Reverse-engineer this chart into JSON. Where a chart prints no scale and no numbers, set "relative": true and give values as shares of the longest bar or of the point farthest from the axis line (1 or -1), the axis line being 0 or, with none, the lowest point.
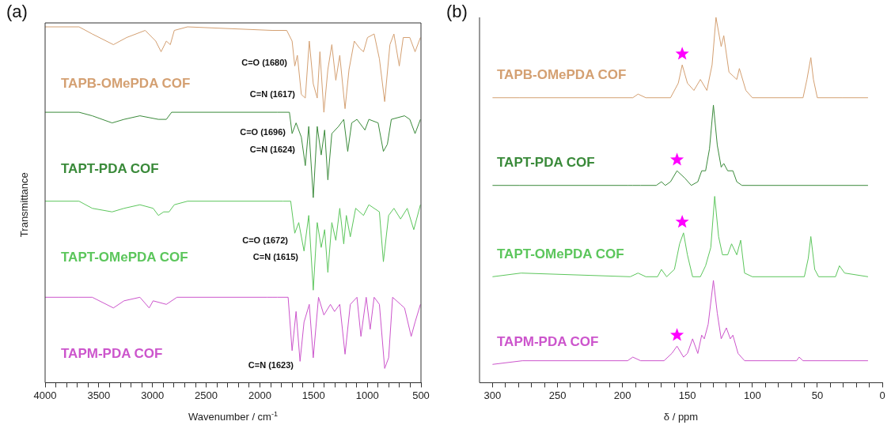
{
  "chart_data": [
    {
      "type": "line",
      "relative": true,
      "xlabel": "Wavenumber / cm$^{-1}$",
      "ylabel": "Transmittance",
      "xlim": [
        4000,
        500
      ],
      "xticks": [
        4000,
        {
          "value": 3900,
          "label": null
        },
        {
          "value": 3800,
          "label": null
        },
        {
          "value": 3700,
          "label": null
        },
        {
          "value": 3600,
          "label": null
        },
        3500,
        {
          "value": 3400,
          "label": null
        },
        {
          "value": 3300,
          "label": null
        },
        {
          "value": 3200,
          "label": null
        },
        {
          "value": 3100,
          "label": null
        },
        3000,
        {
          "value": 2900,
          "label": null
        },
        {
          "value": 2800,
          "label": null
        },
        {
          "value": 2700,
          "label": null
        },
        {
          "value": 2600,
          "label": null
        },
        2500,
        {
          "value": 2400,
          "label": null
        },
        {
          "value": 2300,
          "label": null
        },
        {
          "value": 2200,
          "label": null
        },
        {
          "value": 2100,
          "label": null
        },
        2000,
        {
          "value": 1900,
          "label": null
        },
        {
          "value": 1800,
          "label": null
        },
        {
          "value": 1700,
          "label": null
        },
        {
          "value": 1600,
          "label": null
        },
        1500,
        {
          "value": 1400,
          "label": null
        },
        {
          "value": 1300,
          "label": null
        },
        {
          "value": 1200,
          "label": null
        },
        {
          "value": 1100,
          "label": null
        },
        1000,
        {
          "value": 900,
          "label": null
        },
        {
          "value": 800,
          "label": null
        },
        {
          "value": 700,
          "label": null
        },
        {
          "value": 600,
          "label": null
        },
        500
      ],
      "marker": "none",
      "annotations": [
        "(a)",
        "C=O (1680)",
        "C=N (1617)",
        "C=O (1696)",
        "C=N (1624)",
        "C=O (1672)",
        "C=N (1615)",
        "C=N (1623)"
      ],
      "series": [
        {
          "name": "TAPB-OMePDA COF",
          "color": "#d4a072",
          "x": [
            4000,
            3684,
            3561,
            3364,
            3241,
            3068,
            2970,
            2920,
            2871,
            2834,
            2797,
            2674,
            1885,
            1750,
            1700,
            1675,
            1651,
            1614,
            1577,
            1540,
            1503,
            1466,
            1441,
            1404,
            1367,
            1330,
            1293,
            1256,
            1207,
            1170,
            1121,
            1072,
            1035,
            998,
            936,
            887,
            838,
            789,
            752,
            702,
            665,
            604,
            555,
            505
          ],
          "values": [
            1.0,
            1.0,
            0.98,
            0.95,
            0.97,
            0.99,
            0.96,
            0.93,
            0.96,
            0.95,
            0.99,
            1.0,
            0.99,
            0.99,
            0.96,
            0.89,
            0.92,
            0.81,
            0.8,
            0.96,
            0.84,
            0.8,
            0.93,
            0.76,
            0.88,
            0.95,
            0.85,
            0.92,
            0.77,
            0.88,
            0.96,
            0.94,
            0.93,
            0.97,
            0.98,
            0.91,
            0.79,
            0.95,
            0.98,
            0.89,
            0.97,
            0.97,
            0.93,
            0.97
          ]
        },
        {
          "name": "TAPT-PDA COF",
          "color": "#3a8a3a",
          "x": [
            4000,
            3684,
            3561,
            3376,
            3265,
            3117,
            2945,
            2871,
            2822,
            1836,
            1725,
            1700,
            1663,
            1614,
            1577,
            1545,
            1503,
            1466,
            1429,
            1397,
            1367,
            1330,
            1268,
            1219,
            1182,
            1145,
            1096,
            1022,
            985,
            899,
            850,
            813,
            776,
            653,
            604,
            555,
            505
          ],
          "values": [
            0.76,
            0.76,
            0.75,
            0.73,
            0.74,
            0.75,
            0.74,
            0.74,
            0.76,
            0.76,
            0.76,
            0.7,
            0.73,
            0.69,
            0.61,
            0.72,
            0.52,
            0.72,
            0.64,
            0.71,
            0.57,
            0.7,
            0.72,
            0.74,
            0.65,
            0.73,
            0.74,
            0.71,
            0.74,
            0.73,
            0.65,
            0.67,
            0.74,
            0.75,
            0.74,
            0.7,
            0.74
          ]
        },
        {
          "name": "TAPT-OMePDA COF",
          "color": "#5cc65c",
          "x": [
            4000,
            3684,
            3561,
            3376,
            3265,
            3117,
            2994,
            2945,
            2896,
            2846,
            2797,
            2674,
            1786,
            1713,
            1675,
            1638,
            1589,
            1545,
            1503,
            1466,
            1429,
            1397,
            1367,
            1330,
            1293,
            1256,
            1219,
            1195,
            1158,
            1108,
            1035,
            985,
            887,
            850,
            801,
            752,
            690,
            628,
            567,
            505
          ],
          "values": [
            0.51,
            0.51,
            0.49,
            0.48,
            0.49,
            0.5,
            0.49,
            0.47,
            0.48,
            0.48,
            0.5,
            0.51,
            0.51,
            0.51,
            0.42,
            0.45,
            0.37,
            0.47,
            0.26,
            0.45,
            0.38,
            0.43,
            0.31,
            0.45,
            0.4,
            0.49,
            0.39,
            0.47,
            0.41,
            0.49,
            0.47,
            0.5,
            0.48,
            0.34,
            0.47,
            0.49,
            0.46,
            0.49,
            0.43,
            0.5
          ]
        },
        {
          "name": "TAPM-PDA COF",
          "color": "#cc55cc",
          "x": [
            4000,
            3684,
            3561,
            3364,
            3265,
            3117,
            3031,
            2994,
            2871,
            2772,
            1934,
            1885,
            1836,
            1737,
            1700,
            1663,
            1626,
            1589,
            1540,
            1503,
            1454,
            1404,
            1343,
            1305,
            1256,
            1207,
            1158,
            1096,
            1059,
            1010,
            973,
            936,
            887,
            838,
            801,
            764,
            690,
            653,
            591,
            555,
            505
          ],
          "values": [
            0.24,
            0.24,
            0.24,
            0.21,
            0.23,
            0.24,
            0.21,
            0.23,
            0.22,
            0.24,
            0.24,
            0.24,
            0.24,
            0.24,
            0.09,
            0.2,
            0.06,
            0.17,
            0.22,
            0.07,
            0.24,
            0.19,
            0.22,
            0.2,
            0.22,
            0.08,
            0.22,
            0.24,
            0.13,
            0.24,
            0.15,
            0.24,
            0.22,
            0.04,
            0.07,
            0.24,
            0.22,
            0.21,
            0.13,
            0.17,
            0.22
          ]
        }
      ]
    },
    {
      "type": "line",
      "relative": true,
      "xlabel": "δ / ppm",
      "xlim": [
        310,
        0
      ],
      "xticks": [
        300,
        {
          "value": 290,
          "label": null
        },
        {
          "value": 280,
          "label": null
        },
        {
          "value": 270,
          "label": null
        },
        {
          "value": 260,
          "label": null
        },
        250,
        {
          "value": 240,
          "label": null
        },
        {
          "value": 230,
          "label": null
        },
        {
          "value": 220,
          "label": null
        },
        {
          "value": 210,
          "label": null
        },
        200,
        {
          "value": 190,
          "label": null
        },
        {
          "value": 180,
          "label": null
        },
        {
          "value": 170,
          "label": null
        },
        {
          "value": 160,
          "label": null
        },
        150,
        {
          "value": 140,
          "label": null
        },
        {
          "value": 130,
          "label": null
        },
        {
          "value": 120,
          "label": null
        },
        {
          "value": 110,
          "label": null
        },
        100,
        {
          "value": 90,
          "label": null
        },
        {
          "value": 80,
          "label": null
        },
        {
          "value": 70,
          "label": null
        },
        {
          "value": 60,
          "label": null
        },
        50,
        {
          "value": 40,
          "label": null
        },
        {
          "value": 30,
          "label": null
        },
        {
          "value": 20,
          "label": null
        },
        {
          "value": 10,
          "label": null
        },
        0
      ],
      "marker": "none",
      "annotations": [
        "(b)"
      ],
      "series": [
        {
          "name": "TAPB-OMePDA COF",
          "color": "#d4a072",
          "x": [
            300,
            279,
            192,
            188,
            182,
            163,
            157,
            154,
            150,
            145,
            140,
            135,
            131,
            128,
            124,
            122,
            118,
            115,
            112,
            110,
            105,
            100,
            61,
            58,
            55,
            53,
            50,
            31,
            11
          ],
          "values": [
            0.78,
            0.78,
            0.78,
            0.79,
            0.78,
            0.78,
            0.82,
            0.87,
            0.82,
            0.8,
            0.83,
            0.8,
            0.87,
            1.0,
            0.92,
            0.95,
            0.85,
            0.84,
            0.83,
            0.86,
            0.8,
            0.78,
            0.78,
            0.83,
            0.89,
            0.83,
            0.78,
            0.78,
            0.78
          ]
        },
        {
          "name": "TAPT-PDA COF",
          "color": "#3a8a3a",
          "x": [
            300,
            279,
            196,
            192,
            186,
            174,
            170,
            167,
            163,
            158,
            152,
            147,
            142,
            139,
            136,
            133,
            130,
            127,
            124,
            122,
            119,
            115,
            112,
            108,
            11
          ],
          "values": [
            0.54,
            0.54,
            0.54,
            0.54,
            0.54,
            0.54,
            0.55,
            0.54,
            0.55,
            0.58,
            0.56,
            0.54,
            0.55,
            0.58,
            0.58,
            0.64,
            0.76,
            0.65,
            0.59,
            0.6,
            0.58,
            0.58,
            0.55,
            0.54,
            0.54
          ]
        },
        {
          "name": "TAPT-OMePDA COF",
          "color": "#5cc65c",
          "x": [
            300,
            278,
            194,
            188,
            182,
            173,
            170,
            166,
            160,
            156,
            153,
            150,
            146,
            140,
            136,
            132,
            129,
            126,
            123,
            119,
            116,
            112,
            109,
            106,
            100,
            60,
            57,
            55,
            52,
            49,
            36,
            33,
            29,
            11
          ],
          "values": [
            0.29,
            0.3,
            0.29,
            0.3,
            0.29,
            0.29,
            0.31,
            0.29,
            0.31,
            0.38,
            0.41,
            0.35,
            0.29,
            0.29,
            0.32,
            0.37,
            0.51,
            0.4,
            0.35,
            0.35,
            0.38,
            0.35,
            0.39,
            0.3,
            0.29,
            0.29,
            0.34,
            0.4,
            0.31,
            0.29,
            0.29,
            0.32,
            0.3,
            0.29
          ]
        },
        {
          "name": "TAPM-PDA COF",
          "color": "#cc55cc",
          "x": [
            300,
            277,
            196,
            192,
            186,
            168,
            162,
            158,
            153,
            150,
            146,
            142,
            139,
            137,
            134,
            130,
            127,
            124,
            120,
            117,
            115,
            111,
            106,
            66,
            64,
            61,
            11
          ],
          "values": [
            0.05,
            0.06,
            0.06,
            0.07,
            0.06,
            0.06,
            0.08,
            0.1,
            0.07,
            0.08,
            0.12,
            0.08,
            0.13,
            0.12,
            0.16,
            0.28,
            0.19,
            0.12,
            0.15,
            0.12,
            0.13,
            0.08,
            0.06,
            0.06,
            0.07,
            0.06,
            0.06
          ]
        },
        {
          "type": "scatter",
          "marker": "star",
          "color": "#ff00ff",
          "x": [
            154,
            158,
            154,
            158
          ],
          "values": [
            0.9,
            0.61,
            0.44,
            0.13
          ]
        }
      ]
    }
  ]
}
